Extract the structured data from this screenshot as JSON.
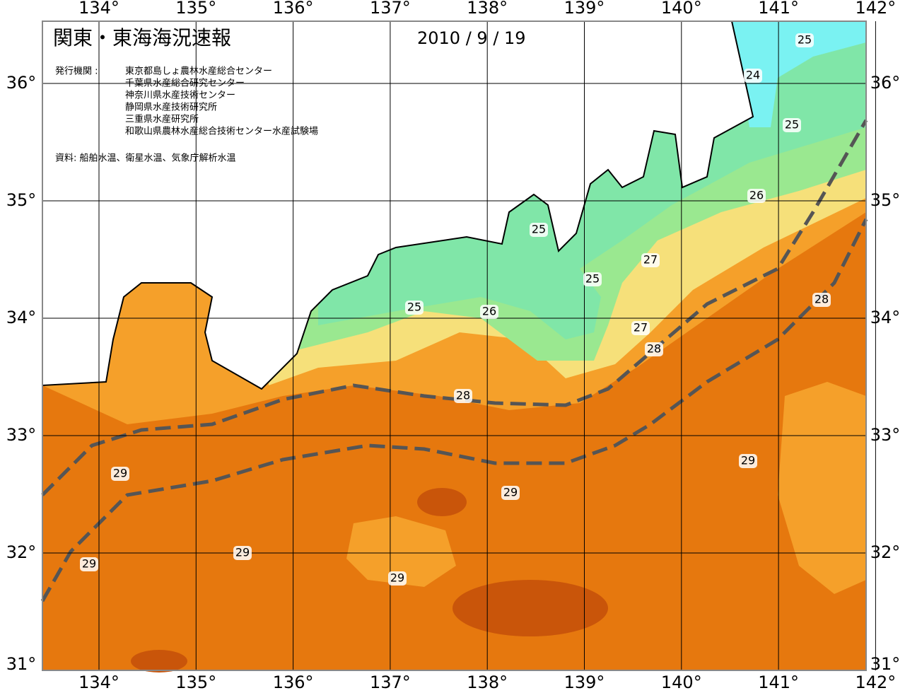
{
  "header": {
    "title": "関東・東海海況速報",
    "date": "2010 / 9 / 19",
    "issuer_label": "発行機関 :",
    "issuers": [
      "東京都島しょ農林水産総合センター",
      "千葉県水産総合研究センター",
      "神奈川県水産技術センター",
      "静岡県水産技術研究所",
      "三重県水産研究所",
      "和歌山県農林水産総合技術センター水産試験場"
    ],
    "source": "資料: 船舶水温、衛星水温、気象庁解析水温"
  },
  "map": {
    "lon_ticks": [
      {
        "value": 134,
        "label": "134°"
      },
      {
        "value": 135,
        "label": "135°"
      },
      {
        "value": 136,
        "label": "136°"
      },
      {
        "value": 137,
        "label": "137°"
      },
      {
        "value": 138,
        "label": "138°"
      },
      {
        "value": 139,
        "label": "139°"
      },
      {
        "value": 140,
        "label": "140°"
      },
      {
        "value": 141,
        "label": "141°"
      },
      {
        "value": 142,
        "label": "142°"
      }
    ],
    "lat_ticks": [
      {
        "value": 36,
        "label": "36°"
      },
      {
        "value": 35,
        "label": "35°"
      },
      {
        "value": 34,
        "label": "34°"
      },
      {
        "value": 33,
        "label": "33°"
      },
      {
        "value": 32,
        "label": "32°"
      },
      {
        "value": 31,
        "label": "31°"
      }
    ],
    "contour_labels": [
      "25",
      "24",
      "25",
      "26",
      "25",
      "27",
      "25",
      "25",
      "26",
      "27",
      "28",
      "28",
      "28",
      "29",
      "29",
      "29",
      "29",
      "29",
      "29"
    ]
  }
}
